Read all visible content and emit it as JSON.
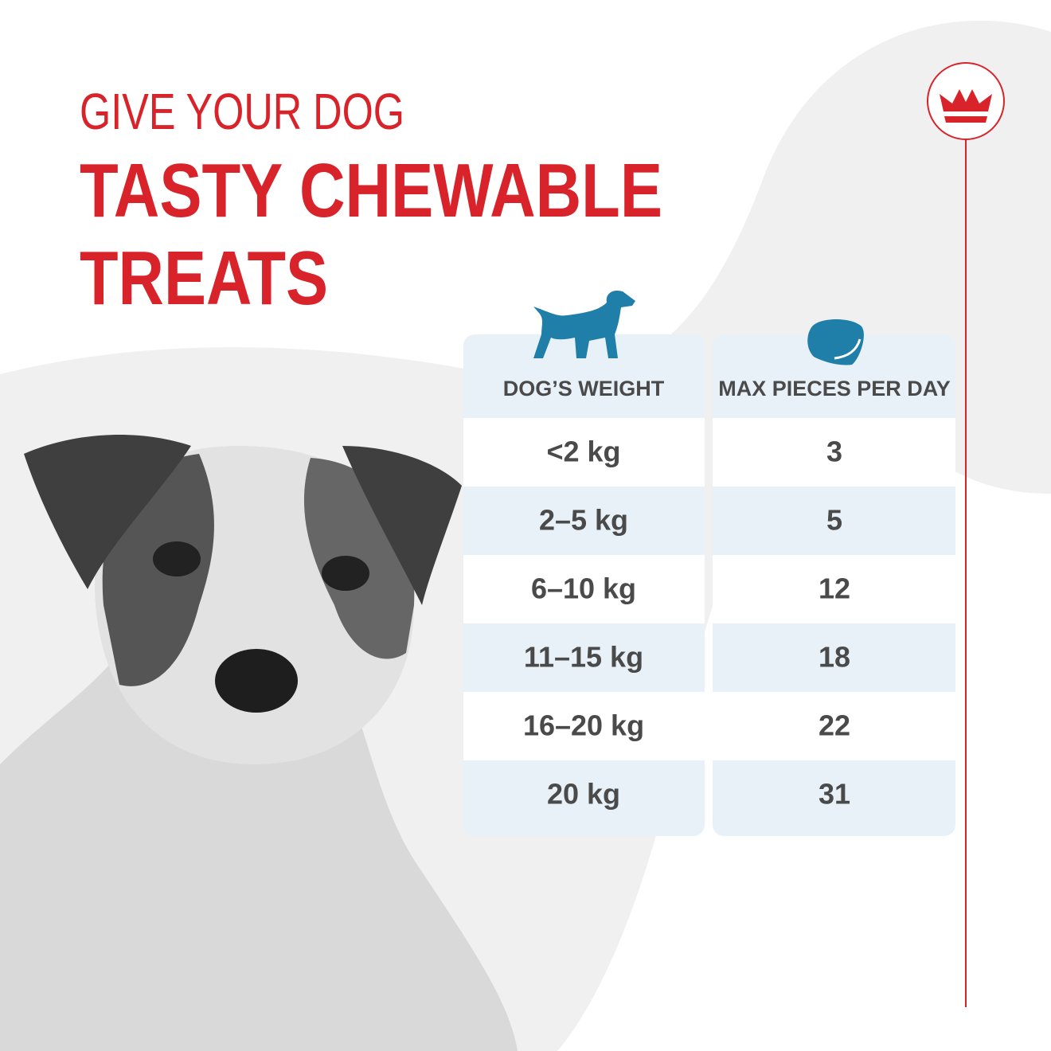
{
  "header": {
    "line1": "GIVE YOUR DOG",
    "line2": "TASTY CHEWABLE",
    "line3": "TREATS"
  },
  "table": {
    "headers": [
      "DOG’S WEIGHT",
      "MAX PIECES PER DAY"
    ],
    "rows": [
      [
        "<2 kg",
        "3"
      ],
      [
        "2–5 kg",
        "5"
      ],
      [
        "6–10 kg",
        "12"
      ],
      [
        "11–15 kg",
        "18"
      ],
      [
        "16–20 kg",
        "22"
      ],
      [
        "20 kg",
        "31"
      ]
    ]
  }
}
